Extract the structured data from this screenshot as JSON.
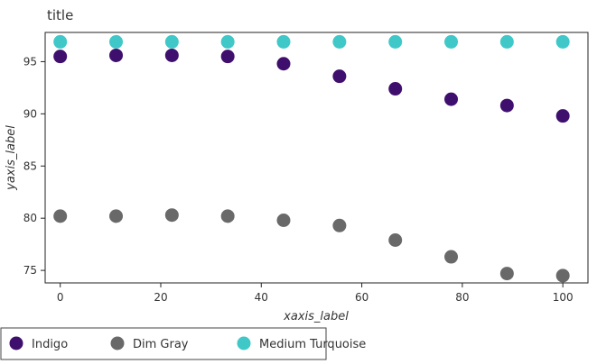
{
  "chart_data": {
    "type": "scatter",
    "title": "title",
    "xlabel": "xaxis_label",
    "ylabel": "yaxis_label",
    "xlim": [
      -3,
      105
    ],
    "ylim": [
      73.8,
      97.8
    ],
    "xticks": [
      0,
      20,
      40,
      60,
      80,
      100
    ],
    "yticks": [
      75,
      80,
      85,
      90,
      95
    ],
    "x": [
      0,
      11.11,
      22.22,
      33.33,
      44.44,
      55.56,
      66.67,
      77.78,
      88.89,
      100
    ],
    "series": [
      {
        "name": "Indigo",
        "color": "#3f0f6e",
        "values": [
          95.5,
          95.6,
          95.6,
          95.5,
          94.8,
          93.6,
          92.4,
          91.4,
          90.8,
          89.8
        ]
      },
      {
        "name": "Dim Gray",
        "color": "#696969",
        "values": [
          80.2,
          80.2,
          80.3,
          80.2,
          79.8,
          79.3,
          77.9,
          76.3,
          74.7,
          74.5
        ]
      },
      {
        "name": "Medium Turquoise",
        "color": "#40c8c8",
        "values": [
          96.9,
          96.9,
          96.9,
          96.9,
          96.9,
          96.9,
          96.9,
          96.9,
          96.9,
          96.9
        ]
      }
    ],
    "grid": false,
    "legend_position": "bottom"
  }
}
